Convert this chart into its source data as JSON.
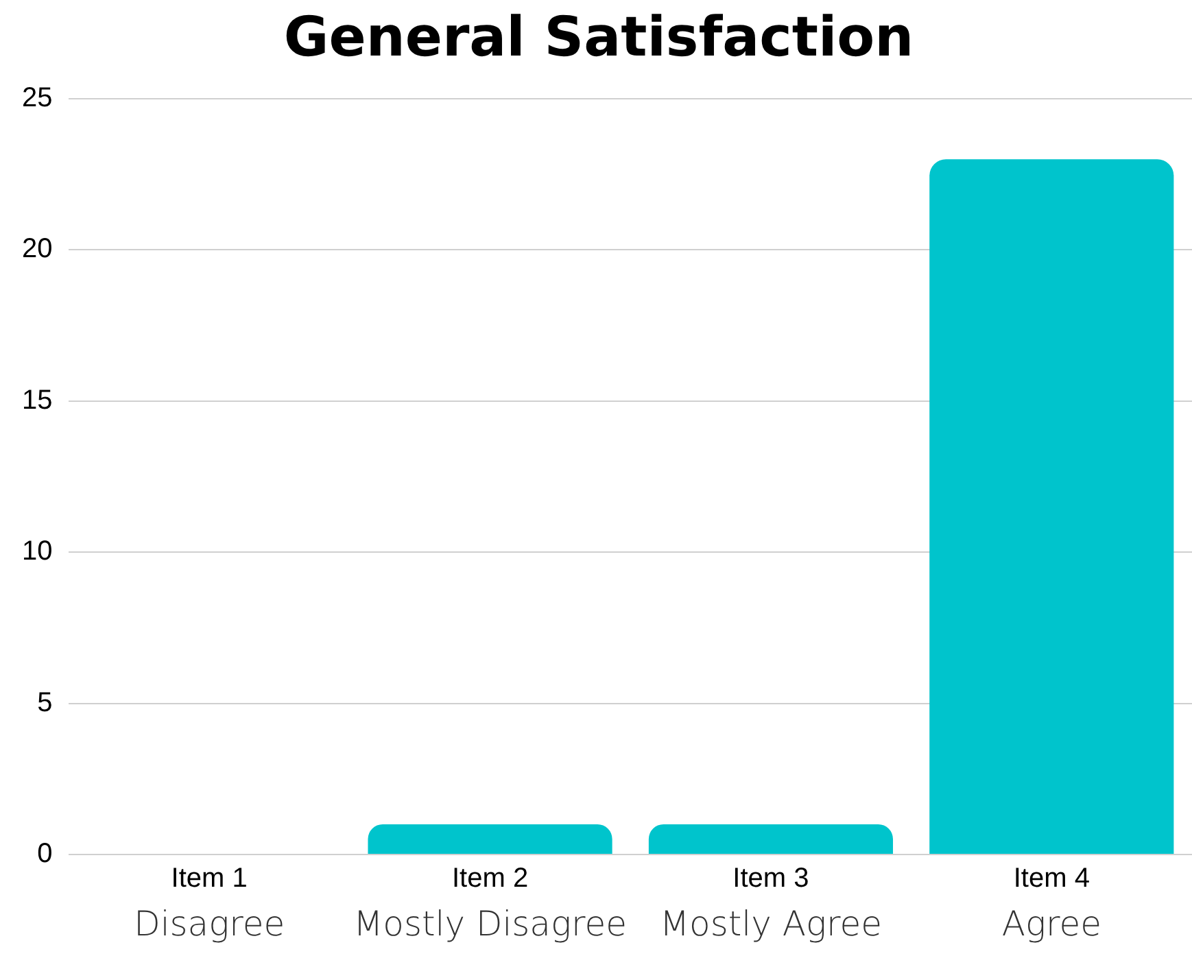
{
  "chart_data": {
    "type": "bar",
    "title": "General Satisfaction",
    "categories": [
      "Item 1",
      "Item 2",
      "Item 3",
      "Item 4"
    ],
    "values": [
      0,
      1,
      1,
      23
    ],
    "color": "#00c4cc",
    "ylim": [
      0,
      25
    ],
    "yticks": [
      0,
      5,
      10,
      15,
      20,
      25
    ],
    "grid": "y",
    "annotations": [
      "Disagree",
      "Mostly Disagree",
      "Mostly Agree",
      "Agree"
    ]
  }
}
